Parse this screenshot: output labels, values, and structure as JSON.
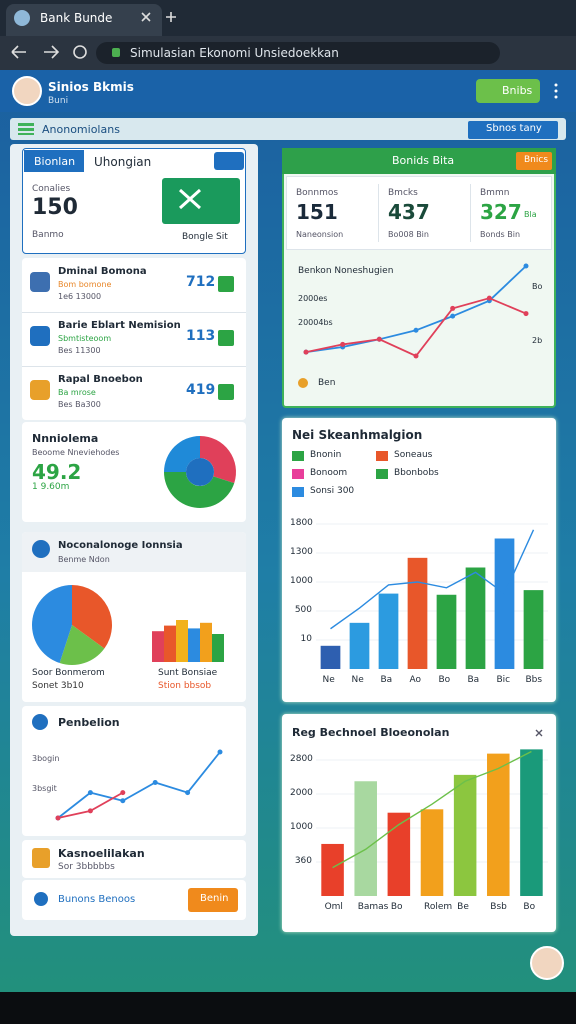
{
  "browser": {
    "tab_title": "Bank Bunde",
    "address": "Simulasian Ekonomi Unsiedoekkan"
  },
  "header": {
    "user_name": "Sinios Bkmis",
    "user_role": "Buni",
    "action_button": "Bnibs"
  },
  "toolbar": {
    "title": "Anonomiolans",
    "filter": "Sbnos tany"
  },
  "left": {
    "summary": {
      "tabs": [
        "Bionlan",
        "Uhongian"
      ],
      "caption": "Conalies",
      "value": "150",
      "unit": "Banmo",
      "image_caption": "Bongle Sit"
    },
    "items": [
      {
        "title": "Dminal Bomona",
        "status": "Bom bomone",
        "amount": "1e6 13000",
        "value": "712"
      },
      {
        "title": "Barie Eblart Nemision",
        "status": "Sbmtisteoom",
        "amount": "Bes 11300",
        "value": "113"
      },
      {
        "title": "Rapal Bnoebon",
        "status": "Ba mrose",
        "amount": "Bes Ba300",
        "value": "419"
      }
    ],
    "donut": {
      "title": "Nnniolema",
      "subtitle": "Beoome Nneviehodes",
      "value": "49.2",
      "change": "1 9.60m",
      "shares": [
        {
          "value": 30,
          "color": "#e0405a"
        },
        {
          "value": 45,
          "color": "#2ca444"
        },
        {
          "value": 25,
          "color": "#1f8ad8"
        }
      ]
    },
    "breakdown": {
      "title": "Noconalonoge Ionnsia",
      "subtitle": "Benme Ndon",
      "pie": [
        {
          "value": 35,
          "color": "#e8572a"
        },
        {
          "value": 20,
          "color": "#6cc04a"
        },
        {
          "value": 45,
          "color": "#2c8be0"
        }
      ],
      "bars": [
        {
          "value": 55,
          "color": "#e0405a"
        },
        {
          "value": 65,
          "color": "#e8572a"
        },
        {
          "value": 75,
          "color": "#f2b21c"
        },
        {
          "value": 60,
          "color": "#2c8be0"
        },
        {
          "value": 70,
          "color": "#f2a01c"
        },
        {
          "value": 50,
          "color": "#2ca444"
        }
      ],
      "captions": [
        {
          "label": "Soor Bonmerom",
          "value": "Sonet 3b10"
        },
        {
          "label": "Sunt Bonsiae",
          "value": "Stion bbsob"
        }
      ]
    },
    "trend": {
      "title": "Penbelion",
      "labels": [
        "3bogin",
        "3bsgit"
      ],
      "series": [
        {
          "color": "#2c8be0",
          "values": [
            5,
            30,
            22,
            40,
            30,
            70
          ]
        },
        {
          "color": "#e0405a",
          "values": [
            5,
            12,
            30
          ]
        }
      ]
    },
    "account": {
      "title": "Kasnoelilakan",
      "subtitle": "Sor 3bbbbbs"
    },
    "footer": {
      "link": "Bunons Benoos",
      "button": "Benin"
    }
  },
  "right": {
    "overview": {
      "title": "Bonids Bita",
      "button": "Bnics",
      "stats": [
        {
          "label": "Bonnmos",
          "value": "151",
          "sub": "Naneonsion",
          "color": "#1a2a3a"
        },
        {
          "label": "Bmcks",
          "value": "437",
          "sub": "Bo008 Bin",
          "color": "#1a4a3a"
        },
        {
          "label": "Bmmn",
          "value": "327",
          "unit": "Bla",
          "sub": "Bonds Bin",
          "color": "#2ca444"
        }
      ],
      "chart": {
        "title": "Benkon Noneshugien",
        "left_labels": [
          "2000es",
          "20004bs"
        ],
        "right_labels": [
          "Bo",
          "2b"
        ],
        "legend": "Ben",
        "series": [
          {
            "color": "#2c8be0",
            "values": [
              8,
              12,
              18,
              25,
              36,
              48,
              75
            ]
          },
          {
            "color": "#e0405a",
            "values": [
              8,
              14,
              18,
              5,
              42,
              50,
              38
            ]
          }
        ]
      }
    },
    "sales": {
      "title": "Nei Skeanhmalgion",
      "legend": [
        {
          "name": "Bnonin",
          "color": "#2ca444"
        },
        {
          "name": "Soneaus",
          "color": "#e8572a"
        },
        {
          "name": "Bonoom",
          "color": "#e83e9a"
        },
        {
          "name": "Bbonbobs",
          "color": "#2ca444"
        },
        {
          "name": "Sonsi 300",
          "color": "#2c8be0"
        }
      ],
      "ylim": [
        0,
        1800
      ],
      "yticks": [
        10,
        500,
        1000,
        1300,
        1800
      ],
      "categories": [
        "Ne",
        "Ne",
        "Ba",
        "Ao",
        "Bo",
        "Ba",
        "Bic",
        "Bbs"
      ],
      "values": [
        8,
        300,
        800,
        1250,
        780,
        1150,
        1550,
        860
      ],
      "colors": [
        "#2e5fb0",
        "#2c9be0",
        "#2c9be0",
        "#e8572a",
        "#2ca444",
        "#2ca444",
        "#2c8be0",
        "#2ca444"
      ],
      "line": [
        200,
        550,
        950,
        1000,
        900,
        1100,
        800,
        1700
      ],
      "line_color": "#2c8be0"
    },
    "growth": {
      "title": "Reg Bechnoel Bloeonolan",
      "ylim": [
        0,
        3100
      ],
      "yticks": [
        360,
        1000,
        2000,
        2800
      ],
      "categories": [
        "Oml",
        "Bamas",
        "Bo",
        "Rolem",
        "Be",
        "Bsb",
        "Bo"
      ],
      "values": [
        700,
        2300,
        1450,
        1550,
        2450,
        2950,
        3050
      ],
      "colors": [
        "#e8402a",
        "#a8d8a0",
        "#e8402a",
        "#f2a01c",
        "#8cc63f",
        "#f2a01c",
        "#1a9a7a"
      ],
      "line": [
        300,
        600,
        1100,
        1700,
        2300,
        2600,
        3000
      ],
      "line_color": "#6cc04a"
    }
  }
}
